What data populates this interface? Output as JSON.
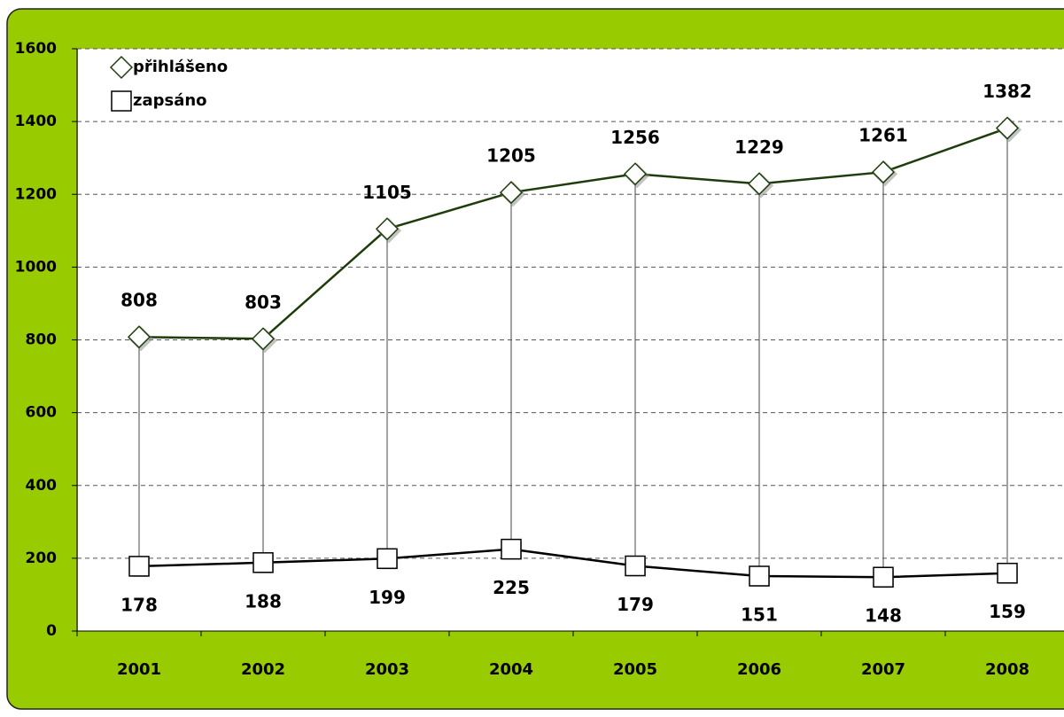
{
  "chart_data": {
    "type": "line",
    "categories": [
      "2001",
      "2002",
      "2003",
      "2004",
      "2005",
      "2006",
      "2007",
      "2008"
    ],
    "series": [
      {
        "name": "přihlášeno",
        "color": "#1f3d0c",
        "marker": "diamond",
        "values": [
          808,
          803,
          1105,
          1205,
          1256,
          1229,
          1261,
          1382
        ]
      },
      {
        "name": "zapsáno",
        "color": "#000000",
        "marker": "square",
        "values": [
          178,
          188,
          199,
          225,
          179,
          151,
          148,
          159
        ]
      }
    ],
    "ylim": [
      0,
      1600
    ],
    "yticks": [
      0,
      200,
      400,
      600,
      800,
      1000,
      1200,
      1400,
      1600
    ],
    "grid": true,
    "legend": "upper left",
    "high_low_lines": true
  }
}
